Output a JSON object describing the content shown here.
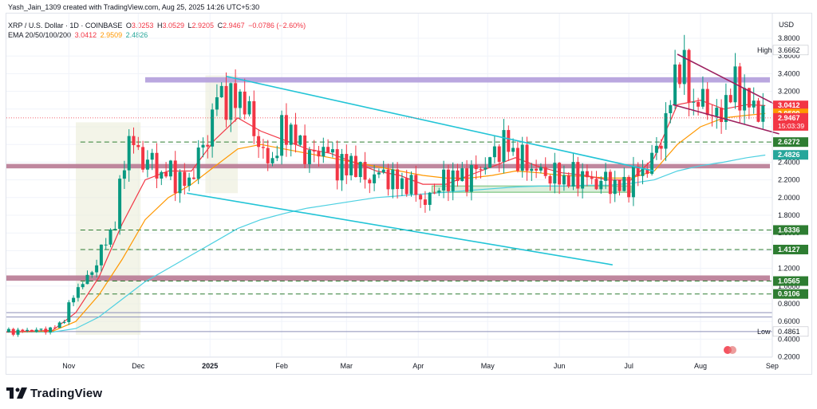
{
  "header": {
    "created": "Yash_Jain_1309 created with TradingView.com, Aug 25, 2025 14:26 UTC+5:30",
    "symbol": "XRP / U.S. Dollar · 1D · COINBASE",
    "ohlc": {
      "o_label": "O",
      "o": "3.0253",
      "h_label": "H",
      "h": "3.0529",
      "l_label": "L",
      "l": "2.9205",
      "c_label": "C",
      "c": "2.9467",
      "change": "−0.0786 (−2.60%)"
    },
    "ema_label": "EMA 20/50/100/200",
    "ema_values": [
      "3.0412",
      "2.9509",
      "2.4826"
    ]
  },
  "footer": {
    "logo_text": "TradingView"
  },
  "colors": {
    "ema20": "#f23645",
    "ema50": "#ff9800",
    "ema100": "#4dd0e1",
    "candle_up": "#089981",
    "candle_down": "#f23645",
    "zone_purple": "#b39ddb",
    "zone_maroon": "#b87a94",
    "trendline_cyan": "#22c4d6",
    "trendline_maroon": "#9c1f5e",
    "support_dash": "#2e7d32",
    "base_box": "#4caf50"
  },
  "chart_data": {
    "type": "candlestick",
    "symbol": "XRP / U.S. Dollar",
    "interval": "1D",
    "exchange": "COINBASE",
    "currency_label": "USD",
    "y_ticks": [
      "3.8000",
      "3.6000",
      "3.4000",
      "3.2000",
      "3.0000",
      "2.8000",
      "2.6000",
      "2.4000",
      "2.2000",
      "2.0000",
      "1.8000",
      "1.6000",
      "1.4000",
      "1.2000",
      "1.0000",
      "0.8000",
      "0.6000",
      "0.4000",
      "0.2000"
    ],
    "x_ticks": [
      "Nov",
      "Dec",
      "2025",
      "Feb",
      "Mar",
      "Apr",
      "May",
      "Jun",
      "Jul",
      "Aug",
      "Sep"
    ],
    "x_range_days": [
      0,
      330
    ],
    "close_path": [
      [
        0,
        0.48
      ],
      [
        10,
        0.5
      ],
      [
        16,
        0.5
      ],
      [
        20,
        0.52
      ],
      [
        24,
        0.58
      ],
      [
        30,
        0.95
      ],
      [
        33,
        1.05
      ],
      [
        36,
        1.1
      ],
      [
        40,
        1.35
      ],
      [
        44,
        1.55
      ],
      [
        48,
        1.8
      ],
      [
        50,
        2.3
      ],
      [
        52,
        2.6
      ],
      [
        54,
        2.7
      ],
      [
        58,
        2.4
      ],
      [
        62,
        2.45
      ],
      [
        66,
        2.25
      ],
      [
        70,
        2.3
      ],
      [
        74,
        2.2
      ],
      [
        78,
        2.15
      ],
      [
        80,
        2.2
      ],
      [
        82,
        2.45
      ],
      [
        84,
        2.5
      ],
      [
        88,
        2.75
      ],
      [
        90,
        3.1
      ],
      [
        92,
        3.2
      ],
      [
        95,
        3.1
      ],
      [
        98,
        3.05
      ],
      [
        100,
        3.2
      ],
      [
        104,
        3.0
      ],
      [
        108,
        2.7
      ],
      [
        110,
        2.55
      ],
      [
        112,
        2.4
      ],
      [
        116,
        2.45
      ],
      [
        118,
        2.7
      ],
      [
        122,
        2.8
      ],
      [
        126,
        2.6
      ],
      [
        130,
        2.5
      ],
      [
        134,
        2.45
      ],
      [
        136,
        2.6
      ],
      [
        140,
        2.5
      ],
      [
        142,
        2.35
      ],
      [
        144,
        2.4
      ],
      [
        147,
        2.3
      ],
      [
        150,
        2.45
      ],
      [
        152,
        2.3
      ],
      [
        156,
        2.2
      ],
      [
        160,
        2.25
      ],
      [
        164,
        2.3
      ],
      [
        166,
        2.15
      ],
      [
        170,
        2.2
      ],
      [
        174,
        2.1
      ],
      [
        178,
        2.15
      ],
      [
        180,
        1.8
      ],
      [
        183,
        2.05
      ],
      [
        186,
        2.1
      ],
      [
        190,
        2.2
      ],
      [
        194,
        2.25
      ],
      [
        198,
        2.2
      ],
      [
        202,
        2.3
      ],
      [
        206,
        2.35
      ],
      [
        210,
        2.45
      ],
      [
        212,
        2.55
      ],
      [
        216,
        2.65
      ],
      [
        218,
        2.5
      ],
      [
        222,
        2.45
      ],
      [
        226,
        2.35
      ],
      [
        230,
        2.3
      ],
      [
        234,
        2.25
      ],
      [
        238,
        2.25
      ],
      [
        242,
        2.2
      ],
      [
        246,
        2.25
      ],
      [
        250,
        2.25
      ],
      [
        254,
        2.15
      ],
      [
        258,
        2.2
      ],
      [
        262,
        2.15
      ],
      [
        266,
        2.1
      ],
      [
        270,
        2.2
      ],
      [
        272,
        2.25
      ],
      [
        274,
        2.3
      ],
      [
        278,
        2.35
      ],
      [
        280,
        2.5
      ],
      [
        284,
        2.75
      ],
      [
        286,
        2.9
      ],
      [
        288,
        3.3
      ],
      [
        290,
        3.55
      ],
      [
        292,
        3.45
      ],
      [
        294,
        3.35
      ],
      [
        296,
        3.1
      ],
      [
        298,
        3.0
      ],
      [
        300,
        3.15
      ],
      [
        302,
        3.05
      ],
      [
        306,
        2.95
      ],
      [
        308,
        2.8
      ],
      [
        310,
        3.1
      ],
      [
        314,
        3.2
      ],
      [
        316,
        3.3
      ],
      [
        318,
        3.15
      ],
      [
        320,
        3.1
      ],
      [
        322,
        3.0
      ],
      [
        324,
        3.02
      ],
      [
        328,
        2.95
      ]
    ],
    "ema20_path": [
      [
        0,
        0.48
      ],
      [
        20,
        0.5
      ],
      [
        30,
        0.7
      ],
      [
        40,
        1.1
      ],
      [
        50,
        1.7
      ],
      [
        60,
        2.2
      ],
      [
        70,
        2.3
      ],
      [
        80,
        2.3
      ],
      [
        90,
        2.65
      ],
      [
        100,
        2.9
      ],
      [
        110,
        2.75
      ],
      [
        120,
        2.65
      ],
      [
        130,
        2.55
      ],
      [
        140,
        2.5
      ],
      [
        150,
        2.4
      ],
      [
        160,
        2.3
      ],
      [
        170,
        2.25
      ],
      [
        180,
        2.15
      ],
      [
        190,
        2.15
      ],
      [
        200,
        2.25
      ],
      [
        210,
        2.35
      ],
      [
        220,
        2.45
      ],
      [
        230,
        2.35
      ],
      [
        240,
        2.28
      ],
      [
        250,
        2.25
      ],
      [
        260,
        2.2
      ],
      [
        270,
        2.2
      ],
      [
        280,
        2.45
      ],
      [
        290,
        3.05
      ],
      [
        300,
        3.1
      ],
      [
        310,
        3.0
      ],
      [
        320,
        3.05
      ],
      [
        328,
        3.04
      ]
    ],
    "ema50_path": [
      [
        0,
        0.48
      ],
      [
        20,
        0.49
      ],
      [
        30,
        0.6
      ],
      [
        40,
        0.9
      ],
      [
        50,
        1.3
      ],
      [
        60,
        1.75
      ],
      [
        70,
        2.0
      ],
      [
        80,
        2.15
      ],
      [
        90,
        2.35
      ],
      [
        100,
        2.55
      ],
      [
        110,
        2.6
      ],
      [
        120,
        2.55
      ],
      [
        130,
        2.5
      ],
      [
        140,
        2.45
      ],
      [
        150,
        2.4
      ],
      [
        160,
        2.35
      ],
      [
        170,
        2.3
      ],
      [
        180,
        2.25
      ],
      [
        190,
        2.22
      ],
      [
        200,
        2.22
      ],
      [
        210,
        2.25
      ],
      [
        220,
        2.3
      ],
      [
        230,
        2.28
      ],
      [
        240,
        2.25
      ],
      [
        250,
        2.24
      ],
      [
        260,
        2.22
      ],
      [
        270,
        2.22
      ],
      [
        280,
        2.3
      ],
      [
        290,
        2.6
      ],
      [
        300,
        2.8
      ],
      [
        310,
        2.9
      ],
      [
        320,
        2.93
      ],
      [
        328,
        2.95
      ]
    ],
    "ema100_path": [
      [
        0,
        0.48
      ],
      [
        20,
        0.48
      ],
      [
        30,
        0.52
      ],
      [
        40,
        0.65
      ],
      [
        50,
        0.85
      ],
      [
        60,
        1.05
      ],
      [
        70,
        1.2
      ],
      [
        80,
        1.35
      ],
      [
        90,
        1.5
      ],
      [
        100,
        1.65
      ],
      [
        110,
        1.75
      ],
      [
        120,
        1.82
      ],
      [
        130,
        1.88
      ],
      [
        140,
        1.92
      ],
      [
        150,
        1.96
      ],
      [
        160,
        2.0
      ],
      [
        170,
        2.02
      ],
      [
        180,
        2.04
      ],
      [
        190,
        2.06
      ],
      [
        200,
        2.08
      ],
      [
        210,
        2.1
      ],
      [
        220,
        2.12
      ],
      [
        230,
        2.13
      ],
      [
        240,
        2.13
      ],
      [
        250,
        2.14
      ],
      [
        260,
        2.14
      ],
      [
        270,
        2.16
      ],
      [
        280,
        2.2
      ],
      [
        290,
        2.3
      ],
      [
        300,
        2.36
      ],
      [
        310,
        2.4
      ],
      [
        320,
        2.45
      ],
      [
        328,
        2.48
      ]
    ],
    "zones": [
      {
        "color_key": "zone_purple",
        "y_low": 3.3,
        "y_high": 3.36,
        "x_start": 60,
        "x_end": 330
      },
      {
        "color_key": "zone_maroon",
        "y_low": 2.33,
        "y_high": 2.38,
        "x_start": 0,
        "x_end": 330
      },
      {
        "color_key": "zone_maroon",
        "y_low": 1.06,
        "y_high": 1.12,
        "x_start": 0,
        "x_end": 330
      }
    ],
    "trendlines": [
      {
        "color_key": "trendline_cyan",
        "x1": 95,
        "y1": 3.37,
        "x2": 280,
        "y2": 2.3
      },
      {
        "color_key": "trendline_cyan",
        "x1": 78,
        "y1": 2.05,
        "x2": 262,
        "y2": 1.24
      },
      {
        "color_key": "trendline_maroon",
        "x1": 290,
        "y1": 3.62,
        "x2": 334,
        "y2": 3.03
      },
      {
        "color_key": "trendline_maroon",
        "x1": 288,
        "y1": 3.05,
        "x2": 334,
        "y2": 2.72
      }
    ],
    "support_levels": [
      2.6272,
      1.6336,
      1.4127,
      1.0565,
      0.9106
    ],
    "gray_levels": [
      0.7,
      0.65,
      0.4861
    ],
    "base_box": {
      "x_start": 184,
      "x_end": 270,
      "y_low": 2.06,
      "y_high": 2.13
    },
    "price_labels": [
      {
        "text": "High",
        "value": "3.6662",
        "y": 3.6662,
        "kind": "high"
      },
      {
        "text": "",
        "value": "3.0412",
        "y": 3.0412,
        "kind": "ema20"
      },
      {
        "text": "",
        "value": "2.9509",
        "y": 2.9509,
        "kind": "ema50"
      },
      {
        "text": "",
        "value": "2.9467",
        "y": 2.9,
        "kind": "last",
        "sub": "15:03:39"
      },
      {
        "text": "",
        "value": "2.6272",
        "y": 2.6272,
        "kind": "support"
      },
      {
        "text": "",
        "value": "2.4826",
        "y": 2.4826,
        "kind": "ema100"
      },
      {
        "text": "",
        "value": "1.6336",
        "y": 1.6336,
        "kind": "support"
      },
      {
        "text": "",
        "value": "1.4127",
        "y": 1.4127,
        "kind": "support"
      },
      {
        "text": "",
        "value": "1.0565",
        "y": 1.0565,
        "kind": "support"
      },
      {
        "text": "",
        "value": "0.9106",
        "y": 0.9106,
        "kind": "support"
      },
      {
        "text": "Low",
        "value": "0.4861",
        "y": 0.4861,
        "kind": "low"
      }
    ]
  }
}
